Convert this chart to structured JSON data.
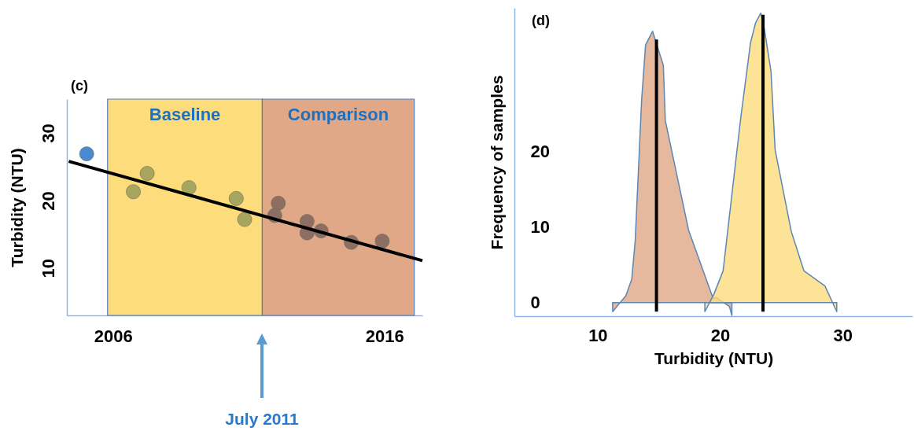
{
  "chart_data": [
    {
      "type": "scatter",
      "title": "(c)",
      "ylabel": "Turbidity (NTU)",
      "xlim": [
        2004.3,
        2017.4
      ],
      "xticks": [
        2006,
        2016
      ],
      "ylim": [
        3,
        35
      ],
      "yticks": [
        10,
        20,
        30
      ],
      "grid": false,
      "marker": "circle",
      "series": [
        {
          "color": "#4a8ad0",
          "x": [
            2005.03
          ],
          "values": [
            26.9
          ]
        },
        {
          "color": "#a8a65e",
          "x": [
            2006.75,
            2007.26,
            2008.8,
            2010.54,
            2010.85
          ],
          "values": [
            21.3,
            24.0,
            21.9,
            20.3,
            17.2
          ]
        },
        {
          "color": "#8d6e63",
          "x": [
            2012.09,
            2011.96,
            2013.15,
            2013.15,
            2013.67,
            2014.78,
            2015.92
          ],
          "values": [
            19.6,
            17.8,
            16.9,
            15.2,
            15.5,
            13.8,
            14.0
          ]
        },
        {
          "type": "line",
          "marker": "none",
          "color": "#000000",
          "x": [
            2004.37,
            2017.4
          ],
          "values": [
            25.8,
            11.1
          ]
        }
      ],
      "bands": [
        {
          "axis": "x",
          "from": 2005.8,
          "to": 2011.5,
          "label": "Baseline",
          "color": "#fddc7c"
        },
        {
          "axis": "x",
          "from": 2011.5,
          "to": 2017.1,
          "label": "Comparison",
          "color": "#e0a886"
        }
      ],
      "annotations": [
        "July 2011"
      ]
    },
    {
      "type": "area",
      "title": "(d)",
      "xlabel": "Turbidity (NTU)",
      "ylabel": "Frequency of samples",
      "xlim": [
        3.2,
        35.7
      ],
      "xticks": [
        10,
        20,
        30
      ],
      "ylim": [
        -1.8,
        39
      ],
      "yticks": [
        0,
        10,
        20
      ],
      "grid": false,
      "series": [
        {
          "color": "#e0a886",
          "x": [
            11.22,
            12.3,
            12.78,
            13.06,
            13.59,
            13.91,
            14.48,
            15.36,
            15.52,
            17.42,
            18.57,
            19.44,
            19.65,
            20.75,
            20.96
          ],
          "values": [
            -1.2,
            0.9,
            3.1,
            8.1,
            26.9,
            34.1,
            35.9,
            31.4,
            24.1,
            9.6,
            4.4,
            0.5,
            0.7,
            -0.5,
            -1.7
          ]
        },
        {
          "color": "#fddc7c",
          "x": [
            18.75,
            19.49,
            20.24,
            21.67,
            22.48,
            22.89,
            23.32,
            23.62,
            24.15,
            24.49,
            25.81,
            26.84,
            28.56,
            29.52
          ],
          "values": [
            -1.2,
            1.1,
            4.2,
            24.3,
            34.4,
            37.0,
            38.3,
            36.1,
            30.6,
            20.2,
            9.4,
            4.2,
            2.2,
            -1.2
          ]
        },
        {
          "type": "line",
          "color": "#000000",
          "x": [
            14.8,
            14.8
          ],
          "values": [
            -1.2,
            34.8
          ]
        },
        {
          "type": "line",
          "color": "#000000",
          "x": [
            23.5,
            23.5
          ],
          "values": [
            -1.2,
            38.1
          ]
        }
      ]
    }
  ]
}
